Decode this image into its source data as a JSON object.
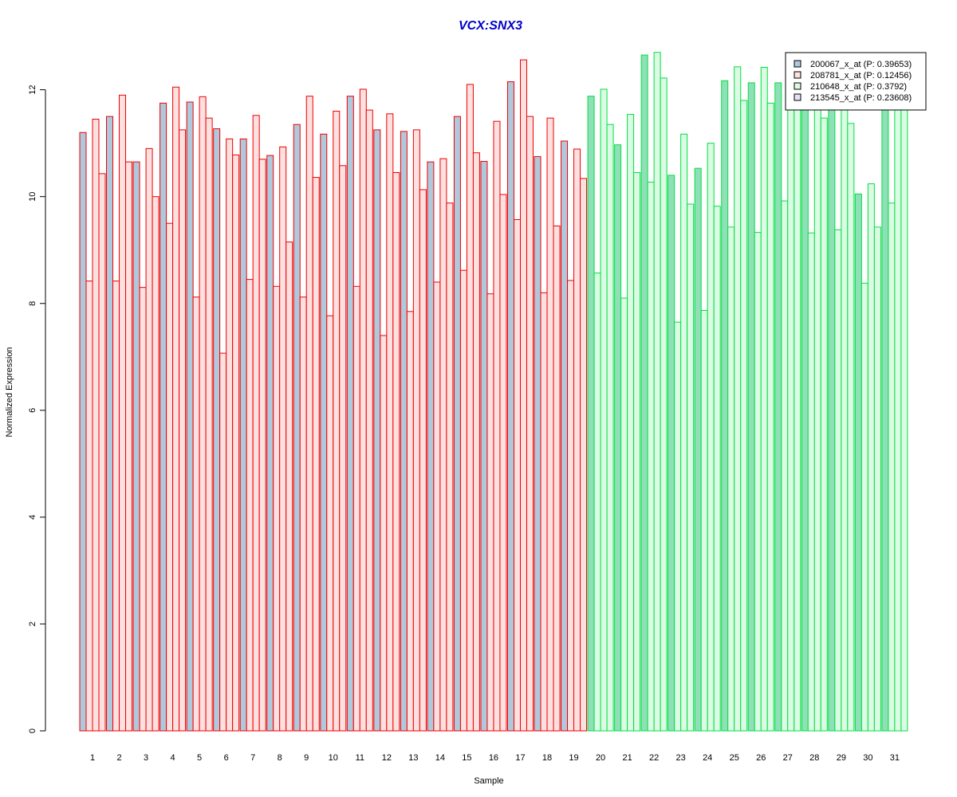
{
  "chart_data": {
    "type": "bar",
    "title": "VCX:SNX3",
    "xlabel": "Sample",
    "ylabel": "Normalized Expression",
    "ylim": [
      0,
      12.8
    ],
    "yticks": [
      "0",
      "2",
      "4",
      "6",
      "8",
      "10",
      "12"
    ],
    "categories": [
      "1",
      "2",
      "3",
      "4",
      "5",
      "6",
      "7",
      "8",
      "9",
      "10",
      "11",
      "12",
      "13",
      "14",
      "15",
      "16",
      "17",
      "18",
      "19",
      "20",
      "21",
      "22",
      "23",
      "24",
      "25",
      "26",
      "27",
      "28",
      "29",
      "30",
      "31"
    ],
    "groups": [
      {
        "name": "",
        "samples": [
          1,
          19
        ],
        "outline": "#ee0000",
        "fill_dark": "#b0c8dc",
        "fill_light": "#fde0e0"
      },
      {
        "name": "",
        "samples": [
          20,
          31
        ],
        "outline": "#00e040",
        "fill_dark": "#8fe0b8",
        "fill_light": "#dcfbe4"
      }
    ],
    "legend": {
      "placement": "top-right",
      "entries": [
        "200067_x_at (P: 0.39653)",
        "208781_x_at (P: 0.12456)",
        "210648_x_at (P: 0.3792)",
        "213545_x_at (P: 0.23608)"
      ],
      "swatches": [
        "#b0c8dc",
        "#fde0e0",
        "#dcfbe4",
        "#e8e0f4"
      ]
    },
    "series": [
      {
        "name": "200067_x_at (P: 0.39653)",
        "values": [
          11.2,
          11.5,
          10.65,
          11.75,
          11.77,
          11.27,
          11.08,
          10.77,
          11.35,
          11.17,
          11.88,
          11.25,
          11.22,
          10.65,
          11.5,
          10.66,
          12.15,
          10.75,
          11.04,
          11.88,
          10.97,
          12.65,
          10.4,
          10.53,
          12.17,
          12.13,
          12.13,
          11.65,
          11.9,
          10.05,
          11.65
        ]
      },
      {
        "name": "208781_x_at (P: 0.12456)",
        "values": [
          8.42,
          8.42,
          8.3,
          9.5,
          8.12,
          7.07,
          8.45,
          8.32,
          8.12,
          7.77,
          8.32,
          7.4,
          7.85,
          8.4,
          8.62,
          8.18,
          9.57,
          8.2,
          8.43,
          8.57,
          8.1,
          10.27,
          7.65,
          7.87,
          9.43,
          9.33,
          9.92,
          9.32,
          9.38,
          8.38,
          9.88
        ]
      },
      {
        "name": "210648_x_at (P: 0.3792)",
        "values": [
          11.45,
          11.9,
          10.9,
          12.05,
          11.87,
          11.08,
          11.52,
          10.93,
          11.88,
          11.6,
          12.01,
          11.55,
          11.25,
          10.71,
          12.1,
          11.41,
          12.56,
          11.47,
          10.89,
          12.01,
          11.54,
          12.7,
          11.17,
          11.0,
          12.43,
          12.42,
          12.1,
          11.85,
          12.12,
          10.24,
          12.62
        ]
      },
      {
        "name": "213545_x_at (P: 0.23608)",
        "values": [
          10.43,
          10.65,
          10.0,
          11.25,
          11.47,
          10.78,
          10.7,
          9.15,
          10.36,
          10.58,
          11.62,
          10.45,
          10.13,
          9.88,
          10.82,
          10.04,
          11.5,
          9.45,
          10.34,
          11.35,
          10.45,
          12.22,
          9.86,
          9.82,
          11.8,
          11.75,
          11.65,
          11.47,
          11.37,
          9.43,
          11.7
        ]
      }
    ]
  }
}
